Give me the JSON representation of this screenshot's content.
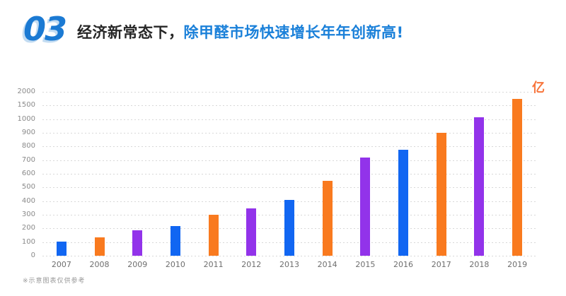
{
  "header": {
    "section_number": "03",
    "title_black": "经济新常态下，",
    "title_blue": "除甲醛市场快速增长年年创新高!"
  },
  "footnote": "※示意图表仅供参考",
  "colors": {
    "section_number_blue": "#1b7ad3",
    "section_number_shadow": "#c3dcf2",
    "title_black": "#262626",
    "title_blue": "#1a80d9",
    "bar_blue": "#1166f2",
    "bar_orange": "#f97a1f",
    "bar_purple": "#9233ea",
    "unit_orange": "#f8743a",
    "gridline_gray": "#d8d8d8",
    "axis_text_gray": "#8a8a8a"
  },
  "chart_data": {
    "type": "bar",
    "title": "",
    "xlabel": "",
    "ylabel": "",
    "unit_label": "亿",
    "categories": [
      "2007",
      "2008",
      "2009",
      "2010",
      "2011",
      "2012",
      "2013",
      "2014",
      "2015",
      "2016",
      "2017",
      "2018",
      "2019"
    ],
    "values": [
      105,
      135,
      185,
      215,
      300,
      345,
      410,
      550,
      720,
      775,
      900,
      1065,
      1740
    ],
    "bar_colors": [
      "#1166f2",
      "#f97a1f",
      "#9233ea",
      "#1166f2",
      "#f97a1f",
      "#9233ea",
      "#1166f2",
      "#f97a1f",
      "#9233ea",
      "#1166f2",
      "#f97a1f",
      "#9233ea",
      "#f97a1f"
    ],
    "yticks": [
      0,
      100,
      200,
      300,
      400,
      500,
      600,
      700,
      800,
      900,
      1000,
      1500,
      2000
    ],
    "ylim": [
      0,
      2000
    ],
    "y_scale_note": "ticks evenly spaced: steps of 100 up to 1000, then steps of 500",
    "grid": "horizontal-dashed",
    "legend": "none"
  }
}
